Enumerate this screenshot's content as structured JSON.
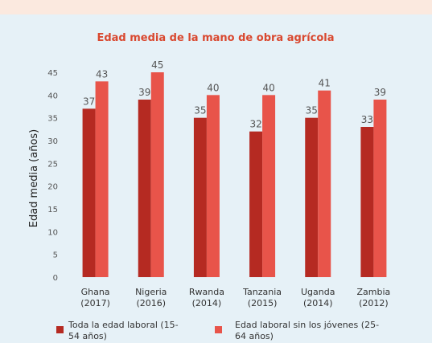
{
  "chart_data": {
    "type": "bar",
    "title": "Edad media de la mano de obra agrícola",
    "y_label": "Edad media (años)",
    "categories": [
      "Ghana (2017)",
      "Nigeria (2016)",
      "Rwanda (2014)",
      "Tanzania (2015)",
      "Uganda (2014)",
      "Zambia (2012)"
    ],
    "series": [
      {
        "name": "Toda la edad laboral (15-54 años)",
        "color": "#b52a22",
        "values": [
          37,
          39,
          35,
          32,
          35,
          33
        ]
      },
      {
        "name": "Edad laboral sin los jóvenes (25-64 años)",
        "color": "#e8544a",
        "values": [
          43,
          45,
          40,
          40,
          41,
          39
        ]
      }
    ],
    "ylim": [
      0,
      45
    ],
    "yticks": [
      0,
      5,
      10,
      15,
      20,
      25,
      30,
      35,
      40,
      45
    ],
    "grid": false,
    "legend": "bottom"
  }
}
